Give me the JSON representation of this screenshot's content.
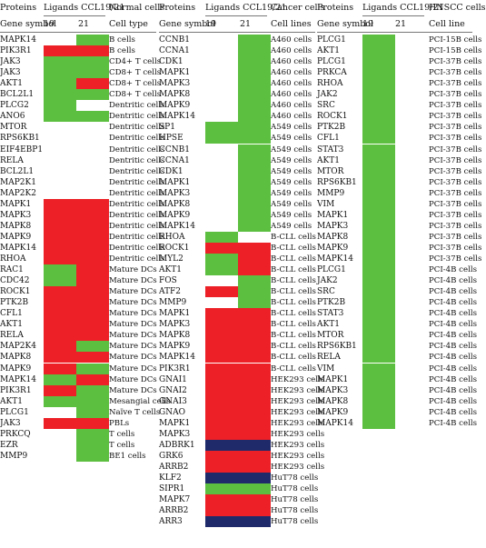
{
  "colors": {
    "G": "#5cbf3f",
    "R": "#ec2026",
    "N": "#1f2a6b",
    "W": "#ffffff"
  },
  "panels": [
    {
      "id": "normal",
      "headers": {
        "proteins": "Proteins",
        "ligands": "Ligands CCL19/21",
        "group": "Normal cells",
        "gene_symbol": "Gene symbol",
        "c19": "19",
        "c21": "21",
        "celltype": "Cell type"
      },
      "rows": [
        [
          "MAPK14",
          "W",
          "G",
          "B cells"
        ],
        [
          "PIK3R1",
          "R",
          "R",
          "B cells"
        ],
        [
          "JAK3",
          "G",
          "G",
          "CD4+ T cells"
        ],
        [
          "JAK3",
          "G",
          "G",
          "CD8+ T cells"
        ],
        [
          "AKT1",
          "G",
          "R",
          "CD8+ T cells"
        ],
        [
          "BCL2L1",
          "G",
          "G",
          "CD8+ T cells"
        ],
        [
          "PLCG2",
          "G",
          "W",
          "Dentritic cells"
        ],
        [
          "ANO6",
          "G",
          "G",
          "Dentritic cells"
        ],
        [
          "MTOR",
          "W",
          "W",
          "Dentritic cells"
        ],
        [
          "RPS6KB1",
          "W",
          "W",
          "Dentritic cells"
        ],
        [
          "EIF4EBP1",
          "W",
          "W",
          "Dentritic cells"
        ],
        [
          "RELA",
          "W",
          "W",
          "Dentritic cells"
        ],
        [
          "BCL2L1",
          "W",
          "W",
          "Dentritic cells"
        ],
        [
          "MAP2K1",
          "W",
          "W",
          "Dentritic cells"
        ],
        [
          "MAP2K2",
          "W",
          "W",
          "Dentritic cells"
        ],
        [
          "MAPK1",
          "R",
          "R",
          "Dentritic cells"
        ],
        [
          "MAPK3",
          "R",
          "R",
          "Dentritic cells"
        ],
        [
          "MAPK8",
          "R",
          "R",
          "Dentritic cells"
        ],
        [
          "MAPK9",
          "R",
          "R",
          "Dentritic cells"
        ],
        [
          "MAPK14",
          "R",
          "R",
          "Dentritic cells"
        ],
        [
          "RHOA",
          "R",
          "R",
          "Dentritic cells"
        ],
        [
          "RAC1",
          "G",
          "R",
          "Mature DCs"
        ],
        [
          "CDC42",
          "G",
          "R",
          "Mature DCs"
        ],
        [
          "ROCK1",
          "R",
          "R",
          "Mature DCs"
        ],
        [
          "PTK2B",
          "R",
          "R",
          "Mature DCs"
        ],
        [
          "CFL1",
          "R",
          "R",
          "Mature DCs"
        ],
        [
          "AKT1",
          "R",
          "R",
          "Mature DCs"
        ],
        [
          "RELA",
          "R",
          "R",
          "Mature DCs"
        ],
        [
          "MAP2K4",
          "R",
          "G",
          "Mature DCs"
        ],
        [
          "MAPK8",
          "R",
          "R",
          "Mature DCs"
        ],
        [
          "MAPK9",
          "R",
          "G",
          "Mature DCs"
        ],
        [
          "MAPK14",
          "G",
          "R",
          "Mature DCs"
        ],
        [
          "PIK3R1",
          "R",
          "G",
          "Mature DCs"
        ],
        [
          "AKT1",
          "G",
          "G",
          "Mesangial cells"
        ],
        [
          "PLCG1",
          "W",
          "G",
          "Naïve T cells"
        ],
        [
          "JAK3",
          "R",
          "R",
          "PBLs"
        ],
        [
          "PRKCQ",
          "W",
          "G",
          "T cells"
        ],
        [
          "EZR",
          "W",
          "G",
          "T cells"
        ],
        [
          "MMP9",
          "W",
          "G",
          "BE1 cells"
        ]
      ]
    },
    {
      "id": "cancer",
      "headers": {
        "proteins": "Proteins",
        "ligands": "Ligands CCL19/21",
        "group": "Cancer cells",
        "gene_symbol": "Gene symbol",
        "c19": "19",
        "c21": "21",
        "celltype": "Cell lines"
      },
      "rows": [
        [
          "CCNB1",
          "W",
          "G",
          "A460 cells"
        ],
        [
          "CCNA1",
          "W",
          "G",
          "A460 cells"
        ],
        [
          "CDK1",
          "W",
          "G",
          "A460 cells"
        ],
        [
          "MAPK1",
          "W",
          "G",
          "A460 cells"
        ],
        [
          "MAPK3",
          "W",
          "G",
          "A460 cells"
        ],
        [
          "MAPK8",
          "W",
          "G",
          "A460 cells"
        ],
        [
          "MAPK9",
          "W",
          "G",
          "A460 cells"
        ],
        [
          "MAPK14",
          "W",
          "G",
          "A460 cells"
        ],
        [
          "SP1",
          "G",
          "G",
          "A549 cells"
        ],
        [
          "HPSE",
          "G",
          "G",
          "A549 cells"
        ],
        [
          "CCNB1",
          "W",
          "G",
          "A549 cells"
        ],
        [
          "CCNA1",
          "W",
          "G",
          "A549 cells"
        ],
        [
          "CDK1",
          "W",
          "G",
          "A549 cells"
        ],
        [
          "MAPK1",
          "W",
          "G",
          "A549 cells"
        ],
        [
          "MAPK3",
          "W",
          "G",
          "A549 cells"
        ],
        [
          "MAPK8",
          "W",
          "G",
          "A549 cells"
        ],
        [
          "MAPK9",
          "W",
          "G",
          "A549 cells"
        ],
        [
          "MAPK14",
          "W",
          "G",
          "A549 cells"
        ],
        [
          "RHOA",
          "G",
          "W",
          "B-CLL cells"
        ],
        [
          "ROCK1",
          "R",
          "R",
          "B-CLL cells"
        ],
        [
          "MYL2",
          "G",
          "R",
          "B-CLL cells"
        ],
        [
          "AKT1",
          "G",
          "R",
          "B-CLL cells"
        ],
        [
          "FOS",
          "W",
          "G",
          "B-CLL cells"
        ],
        [
          "ATF2",
          "R",
          "G",
          "B-CLL cells"
        ],
        [
          "MMP9",
          "W",
          "G",
          "B-CLL cells"
        ],
        [
          "MAPK1",
          "R",
          "R",
          "B-CLL cells"
        ],
        [
          "MAPK3",
          "R",
          "R",
          "B-CLL cells"
        ],
        [
          "MAPK8",
          "R",
          "R",
          "B-CLL cells"
        ],
        [
          "MAPK9",
          "R",
          "R",
          "B-CLL cells"
        ],
        [
          "MAPK14",
          "R",
          "R",
          "B-CLL cells"
        ],
        [
          "PIK3R1",
          "R",
          "R",
          "B-CLL cells"
        ],
        [
          "GNAI1",
          "R",
          "R",
          "HEK293 cells"
        ],
        [
          "GNAI2",
          "R",
          "R",
          "HEK293 cells"
        ],
        [
          "GNAI3",
          "R",
          "R",
          "HEK293 cells"
        ],
        [
          "GNAO",
          "R",
          "R",
          "HEK293 cells"
        ],
        [
          "MAPK1",
          "R",
          "R",
          "HEK293 cells"
        ],
        [
          "MAPK3",
          "R",
          "R",
          "HEK293 cells"
        ],
        [
          "ADBRK1",
          "N",
          "N",
          "HEK293 cells"
        ],
        [
          "GRK6",
          "R",
          "R",
          "HEK293 cells"
        ],
        [
          "ARRB2",
          "R",
          "R",
          "HEK293 cells"
        ],
        [
          "KLF2",
          "N",
          "N",
          "HuT78 cells"
        ],
        [
          "SIPR1",
          "G",
          "G",
          "HuT78 cells"
        ],
        [
          "MAPK7",
          "R",
          "R",
          "HuT78 cells"
        ],
        [
          "ARRB2",
          "R",
          "R",
          "HuT78 cells"
        ],
        [
          "ARR3",
          "N",
          "N",
          "HuT78 cells"
        ]
      ]
    },
    {
      "id": "hnscc",
      "headers": {
        "proteins": "Proteins",
        "ligands": "Ligands CCL19/21",
        "group": "HNSCC cells",
        "gene_symbol": "Gene symbol",
        "c19": "19",
        "c21": "21",
        "celltype": "Cell line"
      },
      "rows": [
        [
          "PLCG1",
          "G",
          "W",
          "PCI-15B cells"
        ],
        [
          "AKT1",
          "G",
          "W",
          "PCI-15B cells"
        ],
        [
          "PLCG1",
          "G",
          "W",
          "PCI-37B cells"
        ],
        [
          "PRKCA",
          "G",
          "W",
          "PCI-37B cells"
        ],
        [
          "RHOA",
          "G",
          "W",
          "PCI-37B cells"
        ],
        [
          "JAK2",
          "G",
          "W",
          "PCI-37B cells"
        ],
        [
          "SRC",
          "G",
          "W",
          "PCI-37B cells"
        ],
        [
          "ROCK1",
          "G",
          "W",
          "PCI-37B cells"
        ],
        [
          "PTK2B",
          "G",
          "W",
          "PCI-37B cells"
        ],
        [
          "CFL1",
          "G",
          "W",
          "PCI-37B cells"
        ],
        [
          "STAT3",
          "G",
          "W",
          "PCI-37B cells"
        ],
        [
          "AKT1",
          "G",
          "W",
          "PCI-37B cells"
        ],
        [
          "MTOR",
          "G",
          "W",
          "PCI-37B cells"
        ],
        [
          "RPS6KB1",
          "G",
          "W",
          "PCI-37B cells"
        ],
        [
          "MMP9",
          "G",
          "W",
          "PCI-37B cells"
        ],
        [
          "VIM",
          "G",
          "W",
          "PCI-37B cells"
        ],
        [
          "MAPK1",
          "G",
          "W",
          "PCI-37B cells"
        ],
        [
          "MAPK3",
          "G",
          "W",
          "PCI-37B cells"
        ],
        [
          "MAPK8",
          "G",
          "W",
          "PCI-37B cells"
        ],
        [
          "MAPK9",
          "G",
          "W",
          "PCI-37B cells"
        ],
        [
          "MAPK14",
          "G",
          "W",
          "PCI-37B cells"
        ],
        [
          "PLCG1",
          "G",
          "W",
          "PCI-4B cells"
        ],
        [
          "JAK2",
          "G",
          "W",
          "PCI-4B cells"
        ],
        [
          "SRC",
          "G",
          "W",
          "PCI-4B cells"
        ],
        [
          "PTK2B",
          "G",
          "W",
          "PCI-4B cells"
        ],
        [
          "STAT3",
          "G",
          "W",
          "PCI-4B cells"
        ],
        [
          "AKT1",
          "G",
          "W",
          "PCI-4B cells"
        ],
        [
          "MTOR",
          "G",
          "W",
          "PCI-4B cells"
        ],
        [
          "RPS6KB1",
          "G",
          "W",
          "PCI-4B cells"
        ],
        [
          "RELA",
          "G",
          "W",
          "PCI-4B cells"
        ],
        [
          "VIM",
          "G",
          "W",
          "PCI-4B cells"
        ],
        [
          "MAPK1",
          "G",
          "W",
          "PCI-4B cells"
        ],
        [
          "MAPK3",
          "G",
          "W",
          "PCI-4B cells"
        ],
        [
          "MAPK8",
          "G",
          "W",
          "PCI-4B cells"
        ],
        [
          "MAPK9",
          "G",
          "W",
          "PCI-4B cells"
        ],
        [
          "MAPK14",
          "G",
          "W",
          "PCI-4B cells"
        ]
      ]
    }
  ]
}
